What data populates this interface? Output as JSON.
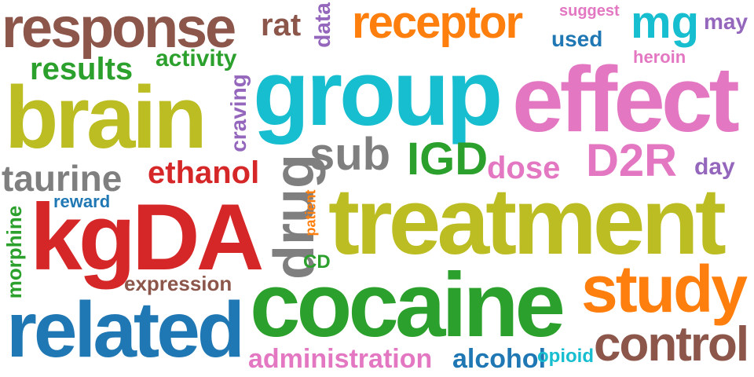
{
  "colors": {
    "brown": "#8c564b",
    "orange": "#ff7f0e",
    "teal": "#17becf",
    "olive": "#bcbd22",
    "pink": "#e377c2",
    "green": "#2ca02c",
    "blue": "#1f77b4",
    "red": "#d62728",
    "gray": "#7f7f7f",
    "purple": "#9467bd"
  },
  "words": {
    "response": "response",
    "rat": "rat",
    "data": "data",
    "receptor": "receptor",
    "suggest": "suggest",
    "mg": "mg",
    "may": "may",
    "used": "used",
    "heroin": "heroin",
    "activity": "activity",
    "results": "results",
    "craving": "craving",
    "group": "group",
    "effect": "effect",
    "brain": "brain",
    "sub": "sub",
    "igd": "IGD",
    "dose": "dose",
    "d2r": "D2R",
    "day": "day",
    "taurine": "taurine",
    "ethanol": "ethanol",
    "drug": "drug",
    "reward": "reward",
    "patient": "patient",
    "treatment": "treatment",
    "kgda": "kgDA",
    "morphine": "morphine",
    "cd": "CD",
    "study": "study",
    "expression": "expression",
    "cocaine": "cocaine",
    "related": "related",
    "control": "control",
    "administration": "administration",
    "alcohol": "alcohol",
    "opioid": "opioid"
  }
}
